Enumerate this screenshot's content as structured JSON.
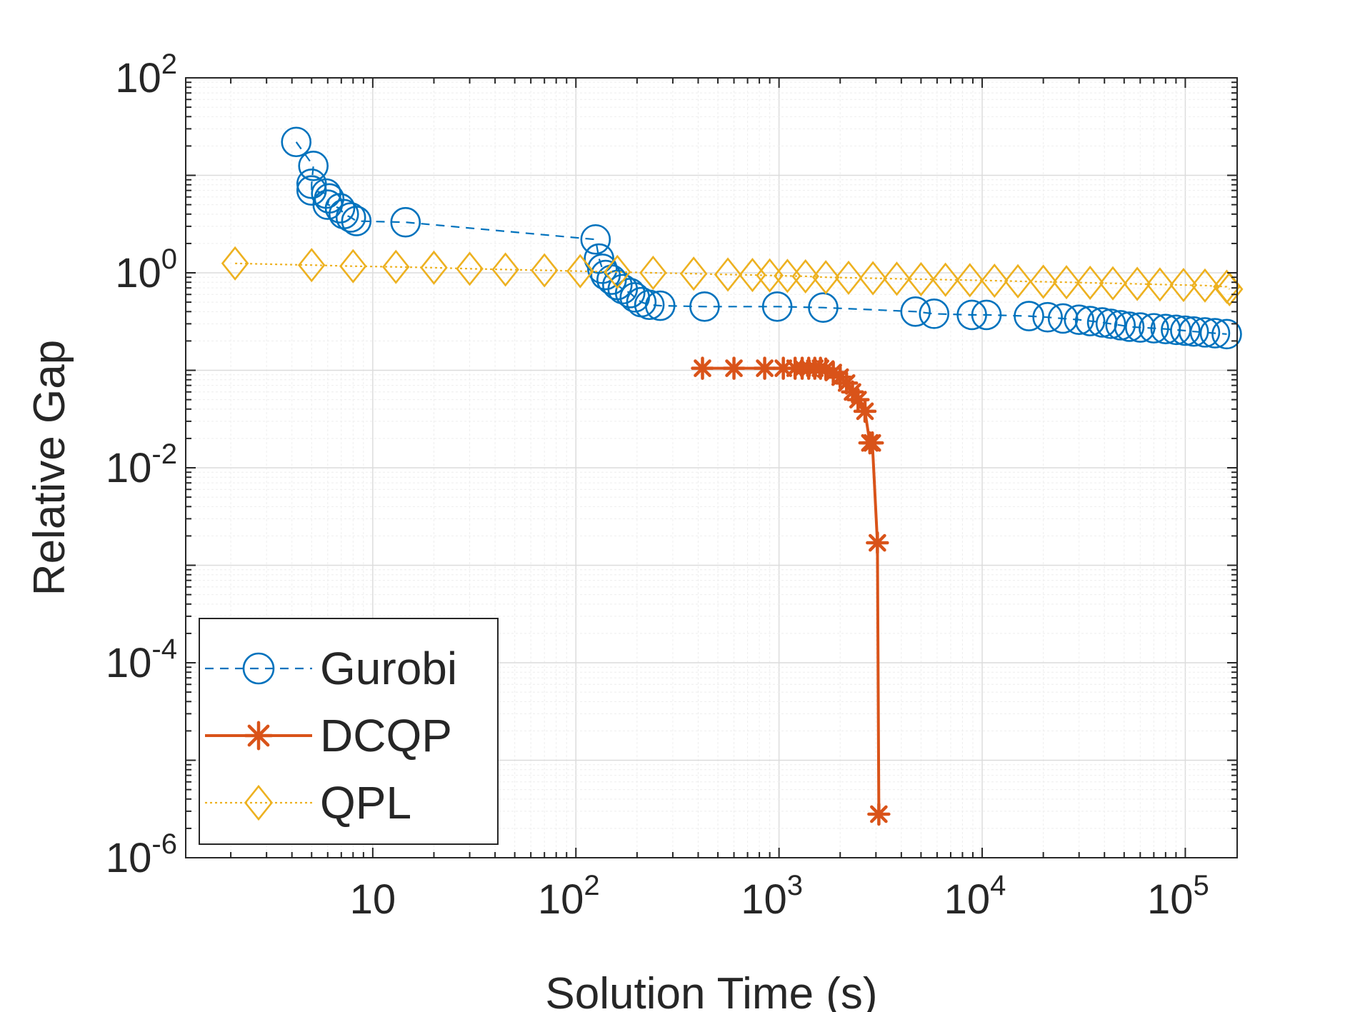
{
  "chart_data": {
    "type": "line",
    "title": "",
    "xlabel": "Solution Time (s)",
    "ylabel": "Relative Gap",
    "xscale": "log",
    "yscale": "log",
    "xlim": [
      1.2,
      180000
    ],
    "ylim": [
      1e-06,
      100
    ],
    "grid": true,
    "legend_position": "bottom-left",
    "x_ticks": [
      {
        "value": 10,
        "base": "10",
        "exp": ""
      },
      {
        "value": 100,
        "base": "10",
        "exp": "2"
      },
      {
        "value": 1000,
        "base": "10",
        "exp": "3"
      },
      {
        "value": 10000,
        "base": "10",
        "exp": "4"
      },
      {
        "value": 100000,
        "base": "10",
        "exp": "5"
      }
    ],
    "y_ticks": [
      {
        "value": 100,
        "base": "10",
        "exp": "2"
      },
      {
        "value": 1,
        "base": "10",
        "exp": "0"
      },
      {
        "value": 0.01,
        "base": "10",
        "exp": "-2"
      },
      {
        "value": 0.0001,
        "base": "10",
        "exp": "-4"
      },
      {
        "value": 1e-06,
        "base": "10",
        "exp": "-6"
      }
    ],
    "series": [
      {
        "name": "Gurobi",
        "color": "#0072BD",
        "line": "dashed",
        "marker": "circle",
        "points": [
          [
            4.2,
            22
          ],
          [
            5.1,
            12.5
          ],
          [
            5.0,
            8.2
          ],
          [
            5.0,
            7.0
          ],
          [
            5.9,
            6.5
          ],
          [
            6.1,
            5.8
          ],
          [
            6.0,
            5.0
          ],
          [
            6.9,
            4.6
          ],
          [
            7.2,
            4.0
          ],
          [
            7.8,
            3.7
          ],
          [
            8.3,
            3.4
          ],
          [
            14.5,
            3.3
          ],
          [
            125,
            2.2
          ],
          [
            130,
            1.4
          ],
          [
            135,
            1.1
          ],
          [
            140,
            0.95
          ],
          [
            150,
            0.85
          ],
          [
            160,
            0.75
          ],
          [
            170,
            0.68
          ],
          [
            185,
            0.62
          ],
          [
            195,
            0.56
          ],
          [
            210,
            0.5
          ],
          [
            230,
            0.47
          ],
          [
            260,
            0.46
          ],
          [
            430,
            0.45
          ],
          [
            980,
            0.45
          ],
          [
            1650,
            0.44
          ],
          [
            4700,
            0.4
          ],
          [
            5800,
            0.38
          ],
          [
            8900,
            0.37
          ],
          [
            10500,
            0.37
          ],
          [
            17000,
            0.36
          ],
          [
            21000,
            0.35
          ],
          [
            25000,
            0.34
          ],
          [
            30000,
            0.33
          ],
          [
            34000,
            0.32
          ],
          [
            39000,
            0.31
          ],
          [
            43000,
            0.3
          ],
          [
            48000,
            0.29
          ],
          [
            53000,
            0.28
          ],
          [
            60000,
            0.275
          ],
          [
            70000,
            0.27
          ],
          [
            80000,
            0.265
          ],
          [
            90000,
            0.26
          ],
          [
            100000,
            0.255
          ],
          [
            110000,
            0.25
          ],
          [
            125000,
            0.245
          ],
          [
            140000,
            0.24
          ],
          [
            160000,
            0.235
          ]
        ]
      },
      {
        "name": "DCQP",
        "color": "#D95319",
        "line": "solid",
        "marker": "asterisk",
        "points": [
          [
            420,
            0.105
          ],
          [
            600,
            0.105
          ],
          [
            850,
            0.105
          ],
          [
            1050,
            0.105
          ],
          [
            1200,
            0.105
          ],
          [
            1300,
            0.105
          ],
          [
            1400,
            0.105
          ],
          [
            1500,
            0.105
          ],
          [
            1600,
            0.105
          ],
          [
            1700,
            0.103
          ],
          [
            1850,
            0.095
          ],
          [
            2000,
            0.085
          ],
          [
            2150,
            0.074
          ],
          [
            2300,
            0.06
          ],
          [
            2450,
            0.05
          ],
          [
            2650,
            0.038
          ],
          [
            2800,
            0.018
          ],
          [
            2880,
            0.018
          ],
          [
            3050,
            0.0017
          ],
          [
            3100,
            2.8e-06
          ]
        ]
      },
      {
        "name": "QPL",
        "color": "#EDB120",
        "line": "dotted",
        "marker": "diamond",
        "points": [
          [
            2.1,
            1.25
          ],
          [
            5.0,
            1.2
          ],
          [
            8.0,
            1.17
          ],
          [
            13,
            1.15
          ],
          [
            20,
            1.13
          ],
          [
            30,
            1.1
          ],
          [
            45,
            1.08
          ],
          [
            70,
            1.06
          ],
          [
            105,
            1.04
          ],
          [
            160,
            1.02
          ],
          [
            240,
            1.0
          ],
          [
            380,
            0.98
          ],
          [
            560,
            0.96
          ],
          [
            740,
            0.95
          ],
          [
            900,
            0.94
          ],
          [
            1100,
            0.93
          ],
          [
            1350,
            0.92
          ],
          [
            1700,
            0.9
          ],
          [
            2200,
            0.89
          ],
          [
            2900,
            0.88
          ],
          [
            3800,
            0.87
          ],
          [
            5000,
            0.86
          ],
          [
            6600,
            0.85
          ],
          [
            8700,
            0.84
          ],
          [
            11500,
            0.83
          ],
          [
            15000,
            0.82
          ],
          [
            20000,
            0.81
          ],
          [
            26000,
            0.8
          ],
          [
            34000,
            0.79
          ],
          [
            44000,
            0.78
          ],
          [
            58000,
            0.77
          ],
          [
            75000,
            0.76
          ],
          [
            98000,
            0.75
          ],
          [
            125000,
            0.74
          ],
          [
            160000,
            0.72
          ],
          [
            165000,
            0.68
          ]
        ]
      }
    ]
  }
}
